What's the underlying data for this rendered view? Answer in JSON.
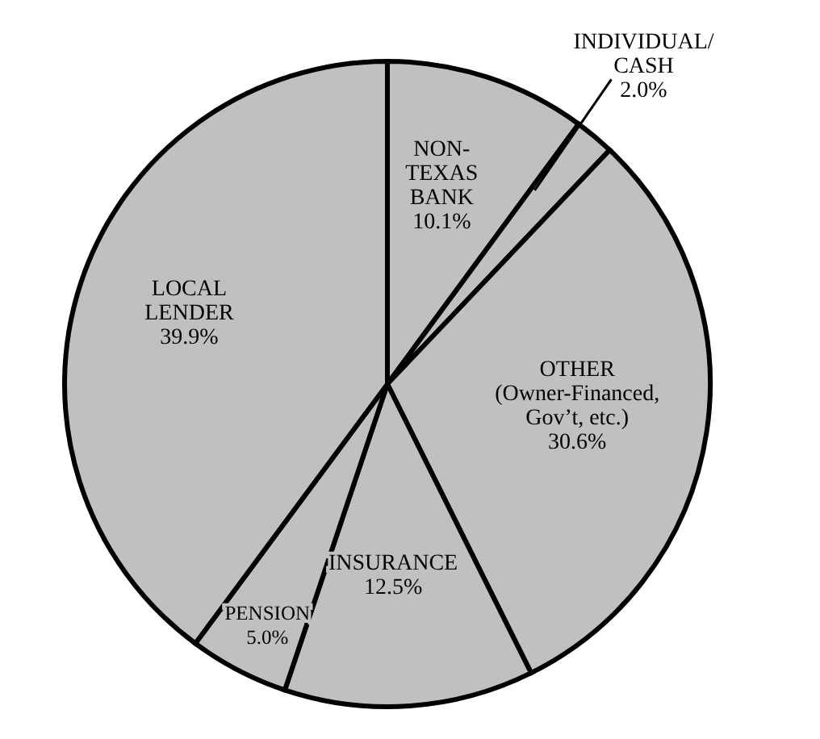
{
  "chart_data": {
    "type": "pie",
    "categories": [
      "NON-\nTEXAS\nBANK",
      "INDIVIDUAL/\nCASH",
      "OTHER\n(Owner-Financed,\nGov’t, etc.)",
      "INSURANCE",
      "PENSION",
      "LOCAL\nLENDER"
    ],
    "values": [
      10.1,
      2.0,
      30.6,
      12.5,
      5.0,
      39.9
    ],
    "value_labels": [
      "10.1%",
      "2.0%",
      "30.6%",
      "12.5%",
      "5.0%",
      "39.9%"
    ],
    "colors": [
      "#c0c0c0",
      "#c0c0c0",
      "#c0c0c0",
      "#c0c0c0",
      "#c0c0c0",
      "#c0c0c0"
    ],
    "legend": false
  }
}
